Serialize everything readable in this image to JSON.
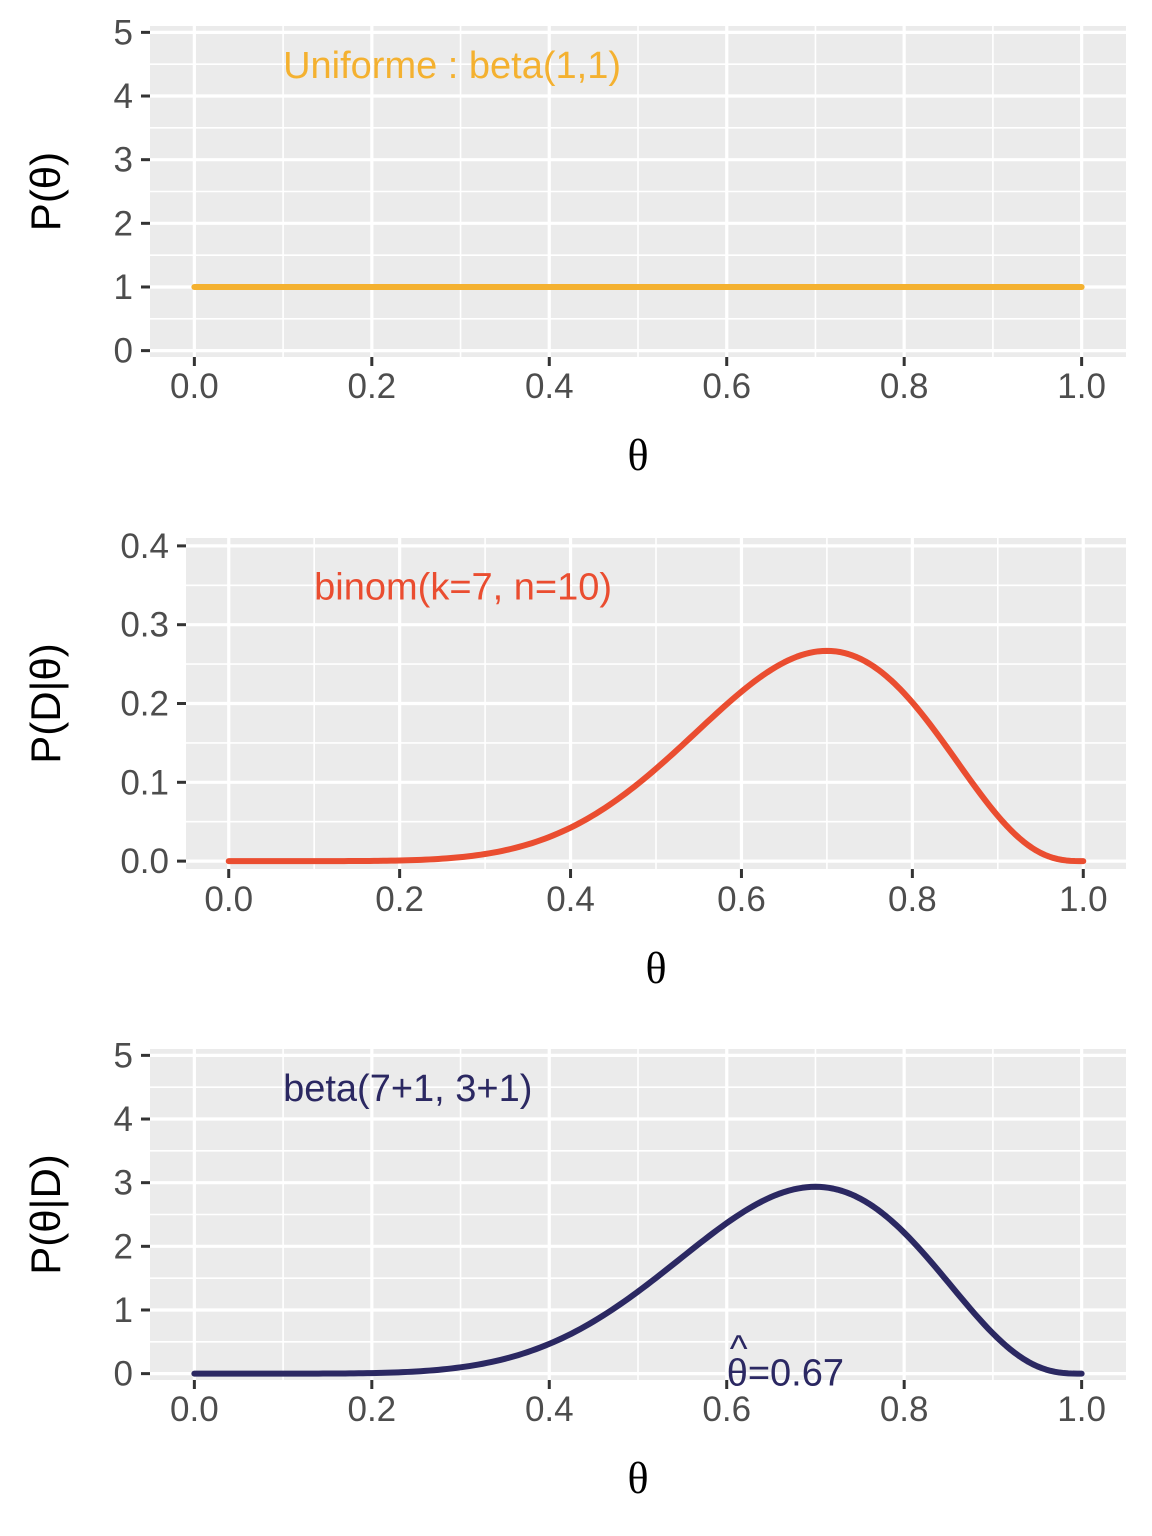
{
  "chart_data": [
    {
      "type": "line",
      "function": "uniform",
      "color": "#f4b130",
      "x": [
        0.0,
        0.1,
        0.2,
        0.3,
        0.4,
        0.5,
        0.6,
        0.7,
        0.8,
        0.9,
        1.0
      ],
      "y": [
        1,
        1,
        1,
        1,
        1,
        1,
        1,
        1,
        1,
        1,
        1
      ],
      "xlabel": "θ",
      "ylabel": "P(θ)",
      "xlim": [
        -0.05,
        1.05
      ],
      "ylim": [
        -0.1,
        5.1
      ],
      "xticks": [
        "0.0",
        "0.2",
        "0.4",
        "0.6",
        "0.8",
        "1.0"
      ],
      "yticks": [
        "0",
        "1",
        "2",
        "3",
        "4",
        "5"
      ],
      "annotations": [
        {
          "text": "Uniforme : beta(1,1)",
          "x": 0.1,
          "y": 4.5
        }
      ]
    },
    {
      "type": "line",
      "function": "binom",
      "params": {
        "k": 7,
        "n": 10
      },
      "color": "#ea4d30",
      "x": [
        0.0,
        0.1,
        0.2,
        0.3,
        0.4,
        0.5,
        0.6,
        0.7,
        0.8,
        0.9,
        1.0
      ],
      "y": [
        0.0,
        0.0,
        0.0008,
        0.009,
        0.0425,
        0.1172,
        0.215,
        0.2668,
        0.2013,
        0.0574,
        0.0
      ],
      "xlabel": "θ",
      "ylabel": "P(D|θ)",
      "xlim": [
        -0.05,
        1.05
      ],
      "ylim": [
        -0.01,
        0.41
      ],
      "xticks": [
        "0.0",
        "0.2",
        "0.4",
        "0.6",
        "0.8",
        "1.0"
      ],
      "yticks": [
        "0.0",
        "0.1",
        "0.2",
        "0.3",
        "0.4"
      ],
      "annotations": [
        {
          "text": "binom(k=7, n=10)",
          "x": 0.1,
          "y": 0.35
        }
      ]
    },
    {
      "type": "line",
      "function": "beta",
      "params": {
        "a": 8,
        "b": 4
      },
      "color": "#2b2862",
      "x": [
        0.0,
        0.1,
        0.2,
        0.3,
        0.4,
        0.5,
        0.6,
        0.7,
        0.8,
        0.9,
        1.0
      ],
      "y": [
        0.0,
        0.0,
        0.0089,
        0.0991,
        0.4672,
        1.289,
        2.365,
        2.935,
        2.215,
        0.631,
        0.0
      ],
      "xlabel": "θ",
      "ylabel": "P(θ|D)",
      "xlim": [
        -0.05,
        1.05
      ],
      "ylim": [
        -0.1,
        5.1
      ],
      "xticks": [
        "0.0",
        "0.2",
        "0.4",
        "0.6",
        "0.8",
        "1.0"
      ],
      "yticks": [
        "0",
        "1",
        "2",
        "3",
        "4",
        "5"
      ],
      "annotations": [
        {
          "text": "beta(7+1, 3+1)",
          "x": 0.1,
          "y": 4.5
        },
        {
          "text": "θ=0.67",
          "hat": "^",
          "x": 0.6,
          "y": 0.0
        }
      ]
    }
  ]
}
